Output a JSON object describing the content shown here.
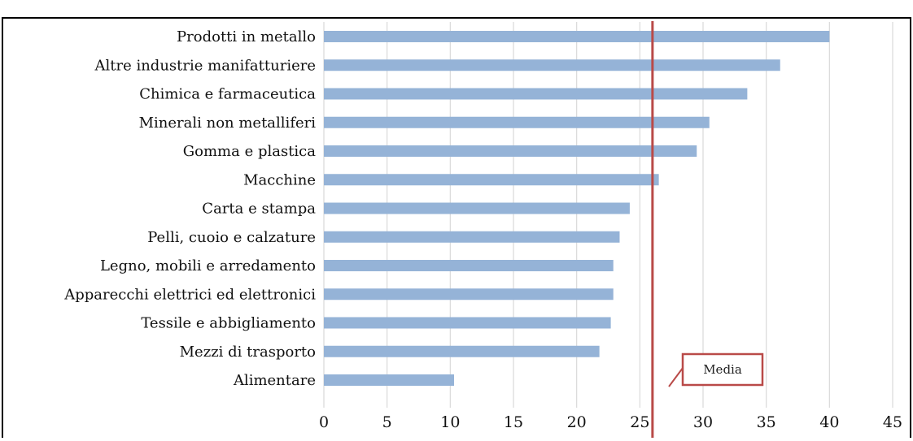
{
  "chart_data": {
    "type": "bar",
    "orientation": "horizontal",
    "categories": [
      "Prodotti in metallo",
      "Altre industrie manifatturiere",
      "Chimica e farmaceutica",
      "Minerali non metalliferi",
      "Gomma e plastica",
      "Macchine",
      "Carta e stampa",
      "Pelli, cuoio e calzature",
      "Legno, mobili e arredamento",
      "Apparecchi elettrici ed elettronici",
      "Tessile e abbigliamento",
      "Mezzi di trasporto",
      "Alimentare"
    ],
    "values": [
      40,
      36.1,
      33.5,
      30.5,
      29.5,
      26.5,
      24.2,
      23.4,
      22.9,
      22.9,
      22.7,
      21.8,
      10.3
    ],
    "xlim": [
      0,
      45
    ],
    "xticks": [
      "0",
      "5",
      "10",
      "15",
      "20",
      "25",
      "30",
      "35",
      "40",
      "45"
    ],
    "grid": "vertical",
    "reference_line": {
      "label": "Media",
      "value": 26
    }
  },
  "colors": {
    "bar": "#95b3d7",
    "reference_line": "#b94a48",
    "callout_border": "#b94a48",
    "frame": "#000000",
    "grid": "#d9d9d9"
  }
}
